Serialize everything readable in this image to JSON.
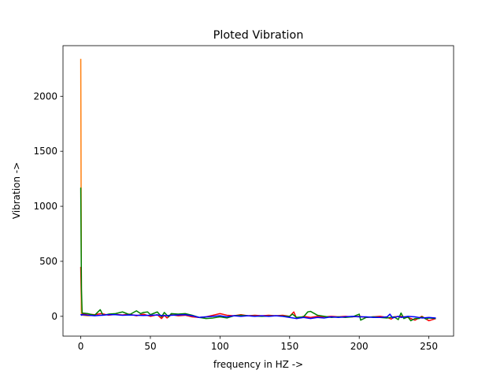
{
  "chart_data": {
    "type": "line",
    "title": "Ploted Vibration",
    "xlabel": "frequency in HZ ->",
    "ylabel": "Vibration ->",
    "xlim": [
      -12.75,
      267.75
    ],
    "ylim": [
      -180,
      2460
    ],
    "xticks": [
      0,
      50,
      100,
      150,
      200,
      250
    ],
    "yticks": [
      0,
      500,
      1000,
      1500,
      2000
    ],
    "grid": false,
    "legend": "none",
    "series": [
      {
        "color": "#ff0000",
        "points": [
          [
            0,
            450
          ],
          [
            0.5,
            60
          ],
          [
            1,
            20
          ],
          [
            5,
            20
          ],
          [
            10,
            15
          ],
          [
            15,
            25
          ],
          [
            20,
            10
          ],
          [
            25,
            18
          ],
          [
            30,
            12
          ],
          [
            35,
            20
          ],
          [
            40,
            5
          ],
          [
            45,
            20
          ],
          [
            50,
            0
          ],
          [
            55,
            15
          ],
          [
            58,
            -20
          ],
          [
            60,
            10
          ],
          [
            62,
            -15
          ],
          [
            65,
            15
          ],
          [
            70,
            5
          ],
          [
            75,
            10
          ],
          [
            80,
            -5
          ],
          [
            85,
            -10
          ],
          [
            90,
            -5
          ],
          [
            95,
            10
          ],
          [
            100,
            25
          ],
          [
            105,
            10
          ],
          [
            110,
            5
          ],
          [
            115,
            15
          ],
          [
            120,
            5
          ],
          [
            125,
            10
          ],
          [
            130,
            5
          ],
          [
            135,
            10
          ],
          [
            140,
            5
          ],
          [
            145,
            10
          ],
          [
            150,
            0
          ],
          [
            153,
            40
          ],
          [
            155,
            -20
          ],
          [
            158,
            -10
          ],
          [
            160,
            0
          ],
          [
            165,
            -10
          ],
          [
            170,
            0
          ],
          [
            175,
            -5
          ],
          [
            180,
            0
          ],
          [
            185,
            -5
          ],
          [
            190,
            0
          ],
          [
            195,
            -5
          ],
          [
            200,
            0
          ],
          [
            205,
            -10
          ],
          [
            210,
            -5
          ],
          [
            215,
            0
          ],
          [
            220,
            -10
          ],
          [
            223,
            -25
          ],
          [
            225,
            -5
          ],
          [
            230,
            0
          ],
          [
            235,
            -10
          ],
          [
            240,
            -35
          ],
          [
            245,
            0
          ],
          [
            250,
            -40
          ],
          [
            255,
            -20
          ]
        ]
      },
      {
        "color": "#ff7f0e",
        "points": [
          [
            0,
            2340
          ],
          [
            0.5,
            20
          ],
          [
            1,
            10
          ],
          [
            5,
            5
          ],
          [
            10,
            10
          ]
        ]
      },
      {
        "color": "#008000",
        "points": [
          [
            0,
            1170
          ],
          [
            0.5,
            250
          ],
          [
            1,
            30
          ],
          [
            5,
            25
          ],
          [
            10,
            10
          ],
          [
            14,
            60
          ],
          [
            16,
            10
          ],
          [
            20,
            20
          ],
          [
            25,
            25
          ],
          [
            30,
            40
          ],
          [
            35,
            15
          ],
          [
            40,
            50
          ],
          [
            43,
            25
          ],
          [
            45,
            35
          ],
          [
            48,
            40
          ],
          [
            50,
            15
          ],
          [
            55,
            40
          ],
          [
            58,
            -5
          ],
          [
            60,
            35
          ],
          [
            63,
            -5
          ],
          [
            65,
            25
          ],
          [
            70,
            20
          ],
          [
            75,
            25
          ],
          [
            80,
            10
          ],
          [
            85,
            -10
          ],
          [
            90,
            -20
          ],
          [
            95,
            -15
          ],
          [
            100,
            -5
          ],
          [
            105,
            -15
          ],
          [
            110,
            5
          ],
          [
            115,
            10
          ],
          [
            120,
            5
          ],
          [
            130,
            0
          ],
          [
            140,
            5
          ],
          [
            150,
            0
          ],
          [
            152,
            20
          ],
          [
            155,
            -10
          ],
          [
            160,
            -5
          ],
          [
            163,
            40
          ],
          [
            165,
            45
          ],
          [
            170,
            10
          ],
          [
            175,
            0
          ],
          [
            180,
            -10
          ],
          [
            185,
            -5
          ],
          [
            190,
            -10
          ],
          [
            195,
            -5
          ],
          [
            200,
            20
          ],
          [
            201,
            -35
          ],
          [
            205,
            -10
          ],
          [
            210,
            -5
          ],
          [
            215,
            -10
          ],
          [
            220,
            -15
          ],
          [
            225,
            -5
          ],
          [
            228,
            -30
          ],
          [
            230,
            30
          ],
          [
            232,
            -20
          ],
          [
            235,
            -5
          ],
          [
            237,
            -40
          ],
          [
            240,
            -20
          ],
          [
            243,
            -20
          ],
          [
            245,
            -5
          ],
          [
            248,
            -25
          ],
          [
            250,
            -15
          ],
          [
            255,
            -20
          ]
        ]
      },
      {
        "color": "#0000ff",
        "points": [
          [
            0,
            20
          ],
          [
            0.5,
            10
          ],
          [
            1,
            15
          ],
          [
            5,
            10
          ],
          [
            10,
            5
          ],
          [
            15,
            10
          ],
          [
            20,
            15
          ],
          [
            25,
            15
          ],
          [
            30,
            10
          ],
          [
            35,
            12
          ],
          [
            40,
            10
          ],
          [
            45,
            8
          ],
          [
            50,
            10
          ],
          [
            55,
            12
          ],
          [
            60,
            5
          ],
          [
            65,
            10
          ],
          [
            70,
            12
          ],
          [
            75,
            15
          ],
          [
            80,
            5
          ],
          [
            85,
            -10
          ],
          [
            90,
            -5
          ],
          [
            95,
            0
          ],
          [
            100,
            5
          ],
          [
            105,
            -5
          ],
          [
            110,
            5
          ],
          [
            115,
            0
          ],
          [
            120,
            5
          ],
          [
            125,
            0
          ],
          [
            130,
            5
          ],
          [
            135,
            0
          ],
          [
            140,
            5
          ],
          [
            145,
            0
          ],
          [
            150,
            -10
          ],
          [
            155,
            -20
          ],
          [
            160,
            -10
          ],
          [
            165,
            -20
          ],
          [
            170,
            -10
          ],
          [
            175,
            -15
          ],
          [
            180,
            -5
          ],
          [
            185,
            -10
          ],
          [
            190,
            -5
          ],
          [
            195,
            0
          ],
          [
            200,
            -5
          ],
          [
            205,
            -5
          ],
          [
            210,
            -10
          ],
          [
            215,
            -10
          ],
          [
            220,
            -5
          ],
          [
            222,
            20
          ],
          [
            224,
            -15
          ],
          [
            228,
            0
          ],
          [
            230,
            -10
          ],
          [
            235,
            0
          ],
          [
            240,
            -5
          ],
          [
            245,
            -15
          ],
          [
            250,
            -10
          ],
          [
            255,
            -15
          ]
        ]
      }
    ]
  }
}
